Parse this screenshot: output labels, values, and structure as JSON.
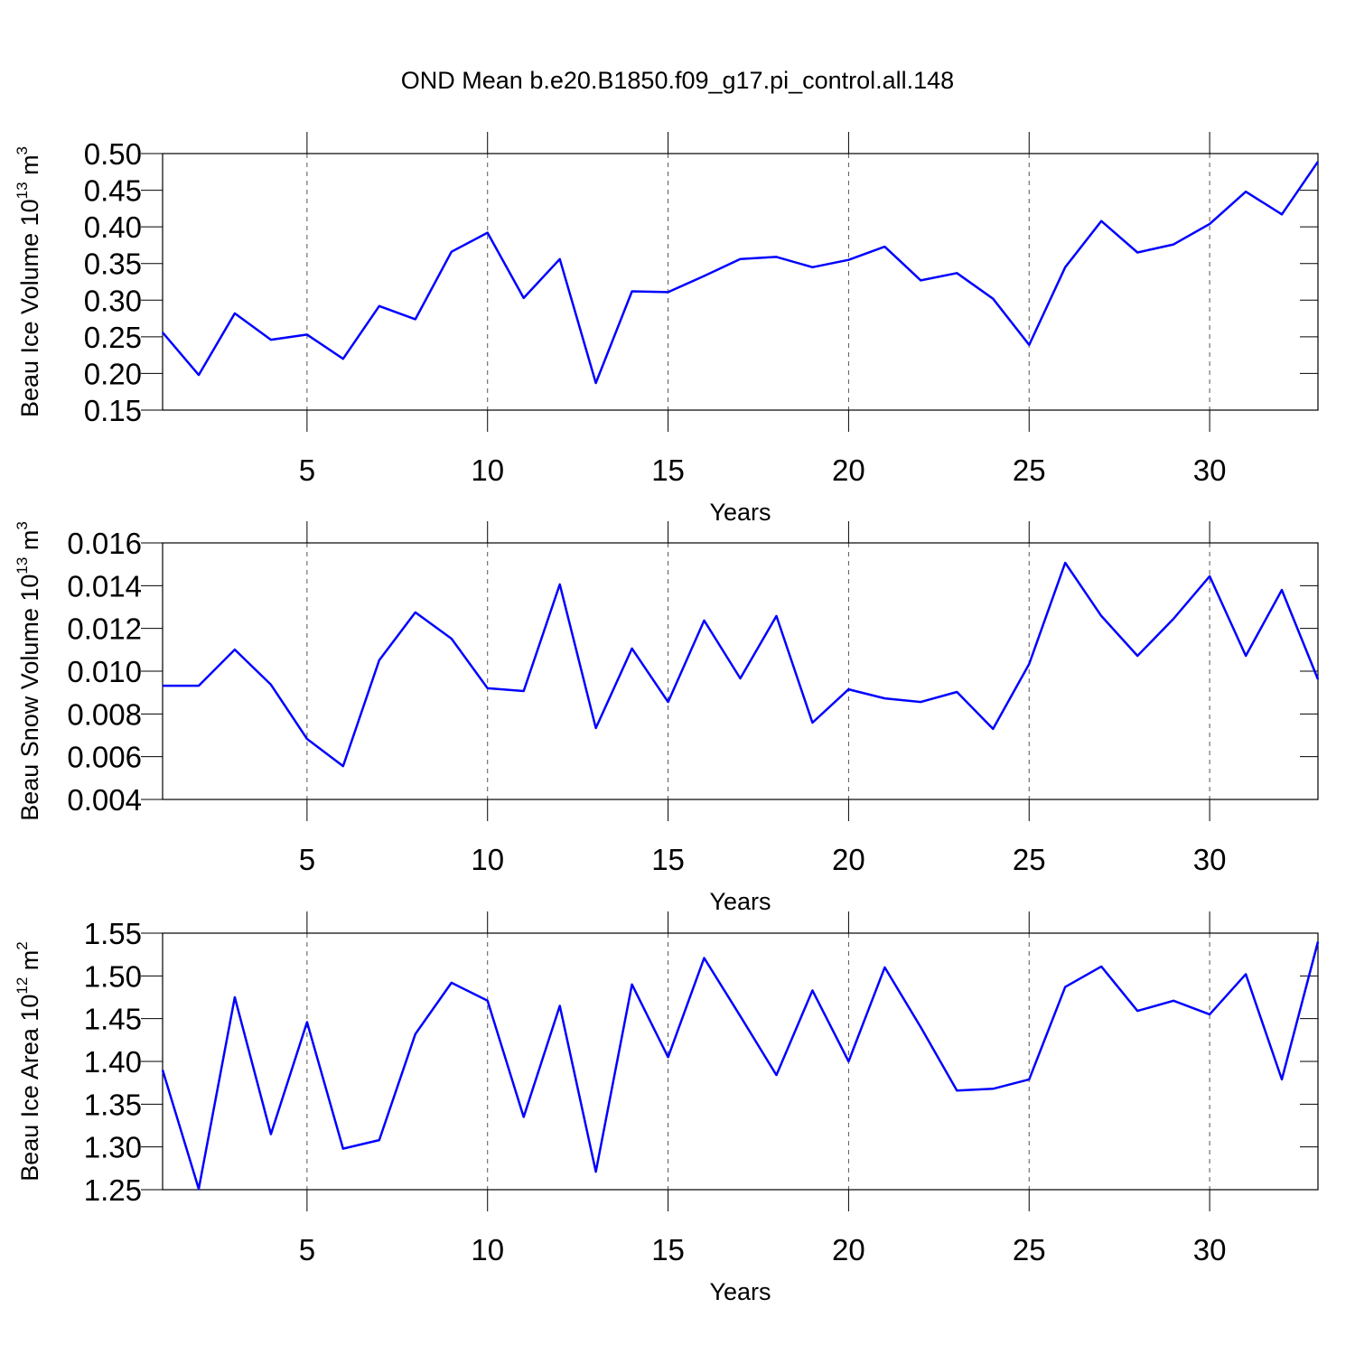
{
  "title": "OND Mean b.e20.B1850.f09_g17.pi_control.all.148",
  "chart_data": [
    {
      "type": "line",
      "color": "#0000ff",
      "grid": true,
      "xlabel": "Years",
      "ylabel": {
        "text": "Beau Ice Volume 10",
        "exp": "13",
        "unit": " m",
        "unit_exp": "3"
      },
      "x": [
        1,
        2,
        3,
        4,
        5,
        6,
        7,
        8,
        9,
        10,
        11,
        12,
        13,
        14,
        15,
        16,
        17,
        18,
        19,
        20,
        21,
        22,
        23,
        24,
        25,
        26,
        27,
        28,
        29,
        30,
        31,
        32,
        33
      ],
      "values": [
        0.256,
        0.198,
        0.282,
        0.246,
        0.253,
        0.22,
        0.292,
        0.274,
        0.366,
        0.392,
        0.303,
        0.356,
        0.187,
        0.312,
        0.311,
        0.333,
        0.356,
        0.359,
        0.345,
        0.355,
        0.373,
        0.327,
        0.337,
        0.302,
        0.239,
        0.345,
        0.408,
        0.365,
        0.376,
        0.404,
        0.448,
        0.417,
        0.489
      ],
      "xlim": [
        1,
        33
      ],
      "xticks": [
        5,
        10,
        15,
        20,
        25,
        30
      ],
      "ylim": [
        0.15,
        0.5
      ],
      "yticks": [
        0.15,
        {
          "value": 0.2,
          "label": "0.20"
        },
        0.25,
        {
          "value": 0.3,
          "label": "0.30"
        },
        0.35,
        {
          "value": 0.4,
          "label": "0.40"
        },
        0.45,
        {
          "value": 0.5,
          "label": "0.50"
        }
      ]
    },
    {
      "type": "line",
      "color": "#0000ff",
      "grid": true,
      "xlabel": "Years",
      "ylabel": {
        "text": "Beau Snow Volume 10",
        "exp": "13",
        "unit": " m",
        "unit_exp": "3"
      },
      "x": [
        1,
        2,
        3,
        4,
        5,
        6,
        7,
        8,
        9,
        10,
        11,
        12,
        13,
        14,
        15,
        16,
        17,
        18,
        19,
        20,
        21,
        22,
        23,
        24,
        25,
        26,
        27,
        28,
        29,
        30,
        31,
        32,
        33
      ],
      "values": [
        0.00932,
        0.00932,
        0.01101,
        0.00937,
        0.00683,
        0.00556,
        0.01051,
        0.01275,
        0.01152,
        0.0092,
        0.00907,
        0.01406,
        0.00734,
        0.01106,
        0.00856,
        0.01237,
        0.00966,
        0.01258,
        0.00759,
        0.00915,
        0.00873,
        0.00856,
        0.00903,
        0.0073,
        0.01034,
        0.01507,
        0.01258,
        0.01072,
        0.01245,
        0.01444,
        0.01072,
        0.0138,
        0.00962
      ],
      "xlim": [
        1,
        33
      ],
      "xticks": [
        5,
        10,
        15,
        20,
        25,
        30
      ],
      "ylim": [
        0.004,
        0.016
      ],
      "yticks": [
        0.004,
        0.006,
        0.008,
        {
          "value": 0.01,
          "label": "0.010"
        },
        0.012,
        0.014,
        0.016
      ]
    },
    {
      "type": "line",
      "color": "#0000ff",
      "grid": true,
      "xlabel": "Years",
      "ylabel": {
        "text": "Beau Ice Area 10",
        "exp": "12",
        "unit": " m",
        "unit_exp": "2"
      },
      "x": [
        1,
        2,
        3,
        4,
        5,
        6,
        7,
        8,
        9,
        10,
        11,
        12,
        13,
        14,
        15,
        16,
        17,
        18,
        19,
        20,
        21,
        22,
        23,
        24,
        25,
        26,
        27,
        28,
        29,
        30,
        31,
        32,
        33
      ],
      "values": [
        1.39,
        1.251,
        1.475,
        1.315,
        1.446,
        1.298,
        1.308,
        1.432,
        1.492,
        1.471,
        1.335,
        1.465,
        1.271,
        1.49,
        1.405,
        1.521,
        1.453,
        1.384,
        1.483,
        1.4,
        1.51,
        1.44,
        1.366,
        1.368,
        1.379,
        1.487,
        1.511,
        1.459,
        1.471,
        1.455,
        1.502,
        1.379,
        1.54
      ],
      "xlim": [
        1,
        33
      ],
      "xticks": [
        5,
        10,
        15,
        20,
        25,
        30
      ],
      "ylim": [
        1.25,
        1.55
      ],
      "yticks": [
        1.25,
        {
          "value": 1.3,
          "label": "1.30"
        },
        1.35,
        {
          "value": 1.4,
          "label": "1.40"
        },
        1.45,
        {
          "value": 1.5,
          "label": "1.50"
        },
        1.55
      ]
    }
  ]
}
